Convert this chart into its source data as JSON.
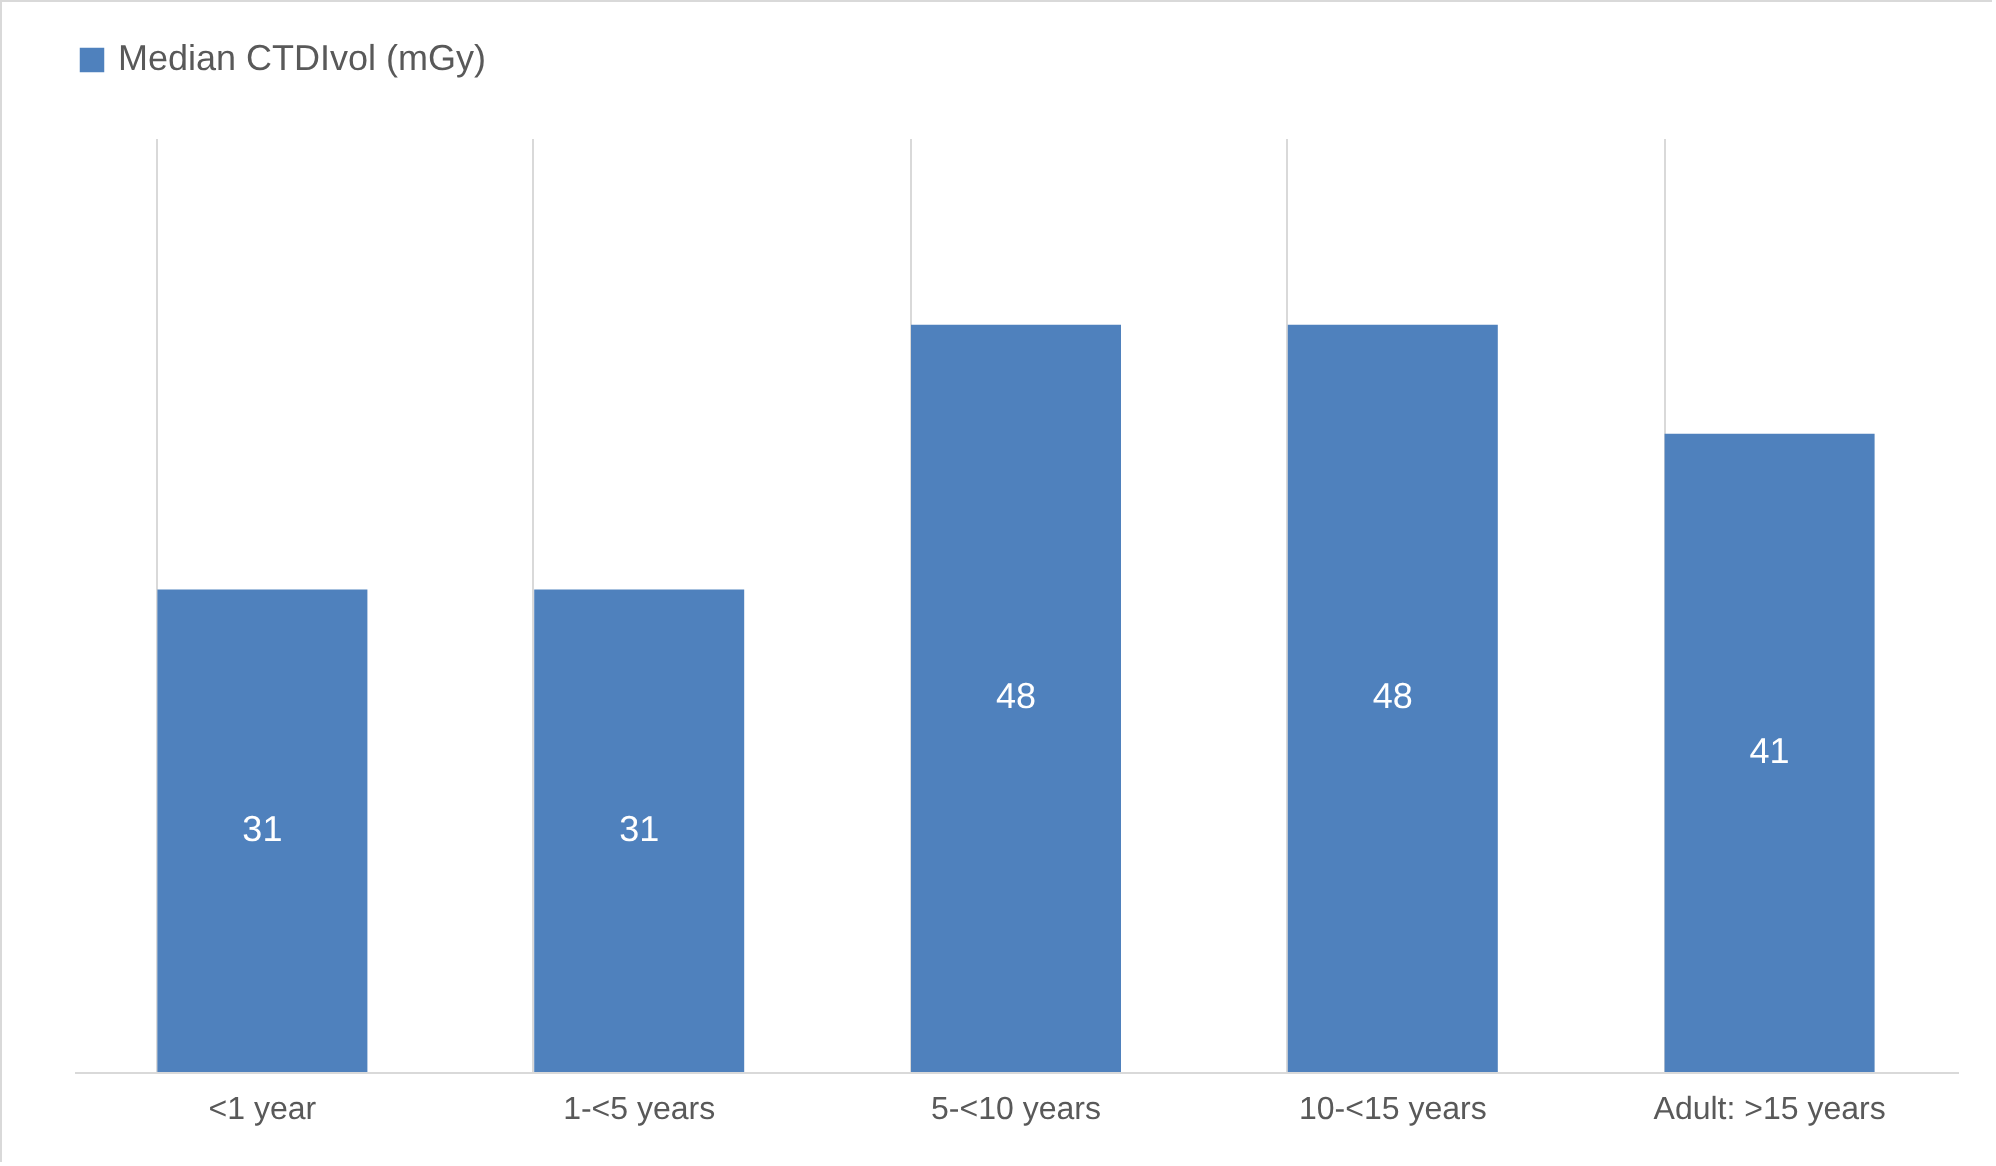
{
  "chart_data": {
    "type": "bar",
    "categories": [
      "<1 year",
      "1-<5 years",
      "5-<10 years",
      "10-<15 years",
      "Adult: >15 years"
    ],
    "series": [
      {
        "name": "Median CTDIvol (mGy)",
        "color": "#4f81bd",
        "values": [
          31,
          31,
          48,
          48,
          41
        ]
      }
    ],
    "ylim": [
      0,
      60
    ],
    "data_labels": true,
    "grid": "x",
    "legend": "top",
    "tick_labels": "x"
  }
}
